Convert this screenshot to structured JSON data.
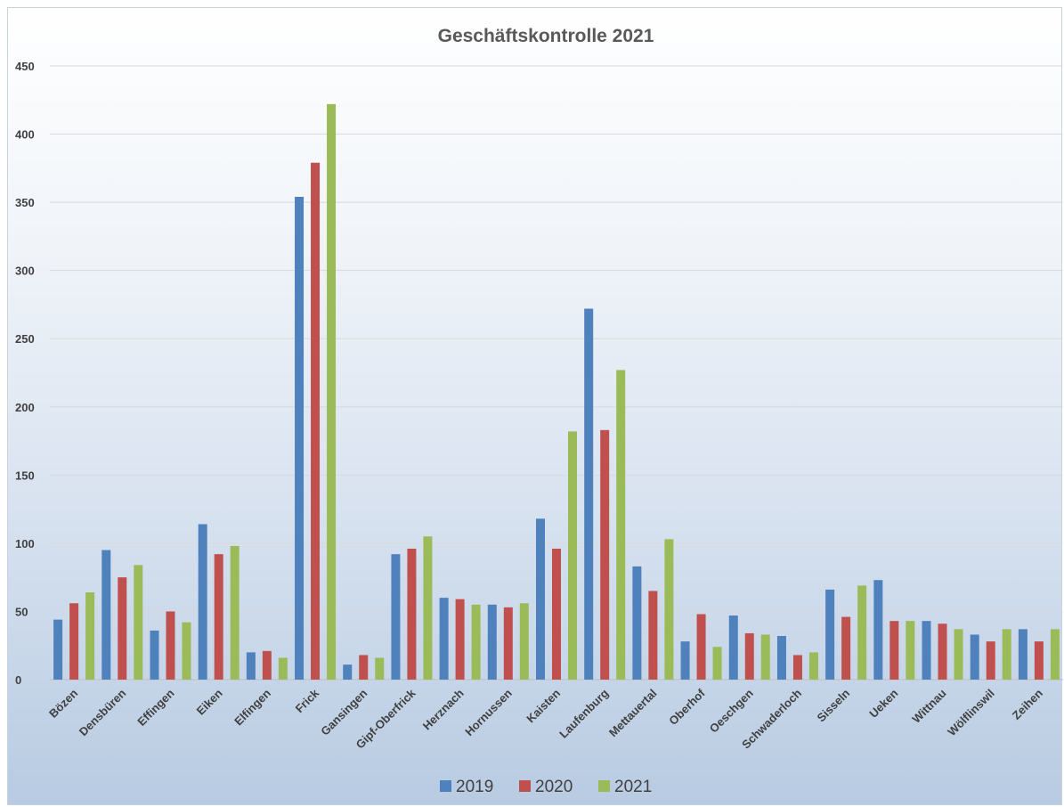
{
  "chart_data": {
    "type": "bar",
    "title": "Geschäftskontrolle 2021",
    "xlabel": "",
    "ylabel": "",
    "ylim": [
      0,
      450
    ],
    "yticks": [
      0,
      50,
      100,
      150,
      200,
      250,
      300,
      350,
      400,
      450
    ],
    "grid": true,
    "legend": "bottom",
    "categories": [
      "Bözen",
      "Densbüren",
      "Effingen",
      "Eiken",
      "Elfingen",
      "Frick",
      "Gansingen",
      "Gipf-Oberfrick",
      "Herznach",
      "Hornussen",
      "Kaisten",
      "Laufenburg",
      "Mettauertal",
      "Oberhof",
      "Oeschgen",
      "Schwaderloch",
      "Sisseln",
      "Ueken",
      "Wittnau",
      "Wölflinswil",
      "Zeihen"
    ],
    "series": [
      {
        "name": "2019",
        "color": "#4f81bd",
        "values": [
          44,
          95,
          36,
          114,
          20,
          354,
          11,
          92,
          60,
          55,
          118,
          272,
          83,
          28,
          47,
          32,
          66,
          73,
          43,
          33,
          37
        ]
      },
      {
        "name": "2020",
        "color": "#c0504d",
        "values": [
          56,
          75,
          50,
          92,
          21,
          379,
          18,
          96,
          59,
          53,
          96,
          183,
          65,
          48,
          34,
          18,
          46,
          43,
          41,
          28,
          28
        ]
      },
      {
        "name": "2021",
        "color": "#9bbb59",
        "values": [
          64,
          84,
          42,
          98,
          16,
          422,
          16,
          105,
          55,
          56,
          182,
          227,
          103,
          24,
          33,
          20,
          69,
          43,
          37,
          37,
          37
        ]
      }
    ]
  }
}
